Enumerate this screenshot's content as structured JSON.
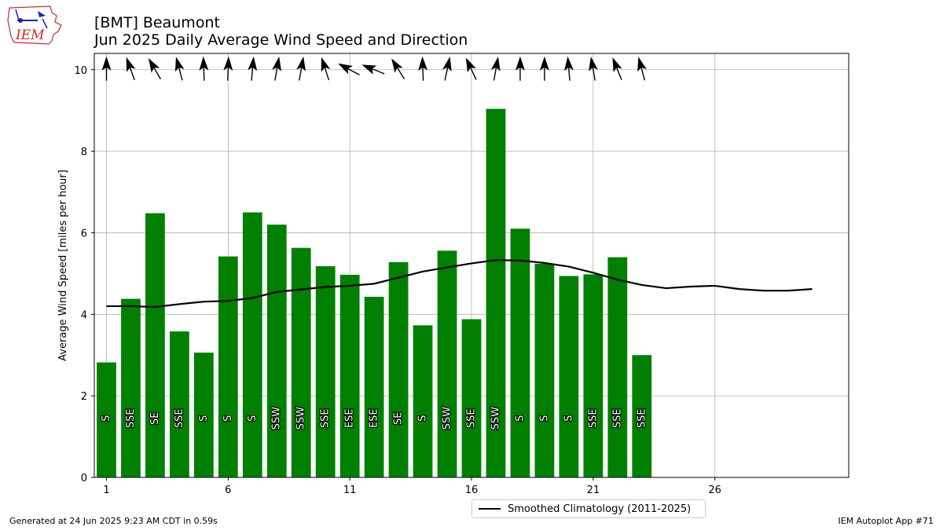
{
  "header": {
    "title_line1": "[BMT] Beaumont",
    "title_line2": "Jun 2025 Daily Average Wind Speed and Direction"
  },
  "logo": {
    "text": "IEM",
    "icon": "iowa-state-outline-weather-icon"
  },
  "footer": {
    "left": "Generated at 24 Jun 2025 9:23 AM CDT in 0.59s",
    "right": "IEM Autoplot App #71"
  },
  "legend": {
    "label": "Smoothed Climatology (2011-2025)"
  },
  "colors": {
    "bar": "#008000",
    "line": "#000000",
    "grid": "#b0b0b0"
  },
  "chart_data": {
    "type": "bar",
    "ylabel": "Average Wind Speed [miles per hour]",
    "xlabel": "",
    "xlim": [
      0.5,
      31.5
    ],
    "ylim": [
      0,
      10.4
    ],
    "xticks": [
      1,
      6,
      11,
      16,
      21,
      26
    ],
    "yticks": [
      0,
      2,
      4,
      6,
      8,
      10
    ],
    "grid": true,
    "legend_position": "bottom-center",
    "days": [
      1,
      2,
      3,
      4,
      5,
      6,
      7,
      8,
      9,
      10,
      11,
      12,
      13,
      14,
      15,
      16,
      17,
      18,
      19,
      20,
      21,
      22,
      23
    ],
    "values": [
      2.82,
      4.38,
      6.48,
      3.58,
      3.06,
      5.42,
      6.5,
      6.2,
      5.63,
      5.18,
      4.97,
      4.43,
      5.28,
      3.73,
      5.56,
      3.88,
      9.04,
      6.1,
      5.24,
      4.94,
      4.98,
      5.4,
      3.0
    ],
    "directions": [
      "S",
      "SSE",
      "SE",
      "SSE",
      "S",
      "S",
      "S",
      "SSW",
      "SSW",
      "SSE",
      "ESE",
      "ESE",
      "SE",
      "S",
      "SSW",
      "SSE",
      "SSW",
      "S",
      "S",
      "S",
      "SSE",
      "SSE",
      "SSE"
    ],
    "arrow_angles_deg": [
      180,
      160,
      150,
      165,
      178,
      182,
      185,
      190,
      190,
      162,
      118,
      112,
      148,
      178,
      192,
      155,
      190,
      180,
      180,
      175,
      170,
      158,
      165
    ],
    "series": [
      {
        "name": "Smoothed Climatology (2011-2025)",
        "type": "line",
        "x": [
          1,
          2,
          3,
          4,
          5,
          6,
          7,
          8,
          9,
          10,
          11,
          12,
          13,
          14,
          15,
          16,
          17,
          18,
          19,
          20,
          21,
          22,
          23,
          24,
          25,
          26,
          27,
          28,
          29,
          30
        ],
        "y": [
          4.2,
          4.2,
          4.18,
          4.25,
          4.31,
          4.33,
          4.4,
          4.55,
          4.61,
          4.67,
          4.7,
          4.75,
          4.9,
          5.05,
          5.15,
          5.25,
          5.33,
          5.32,
          5.26,
          5.17,
          5.02,
          4.85,
          4.72,
          4.64,
          4.68,
          4.7,
          4.62,
          4.58,
          4.58,
          4.62
        ]
      }
    ]
  }
}
